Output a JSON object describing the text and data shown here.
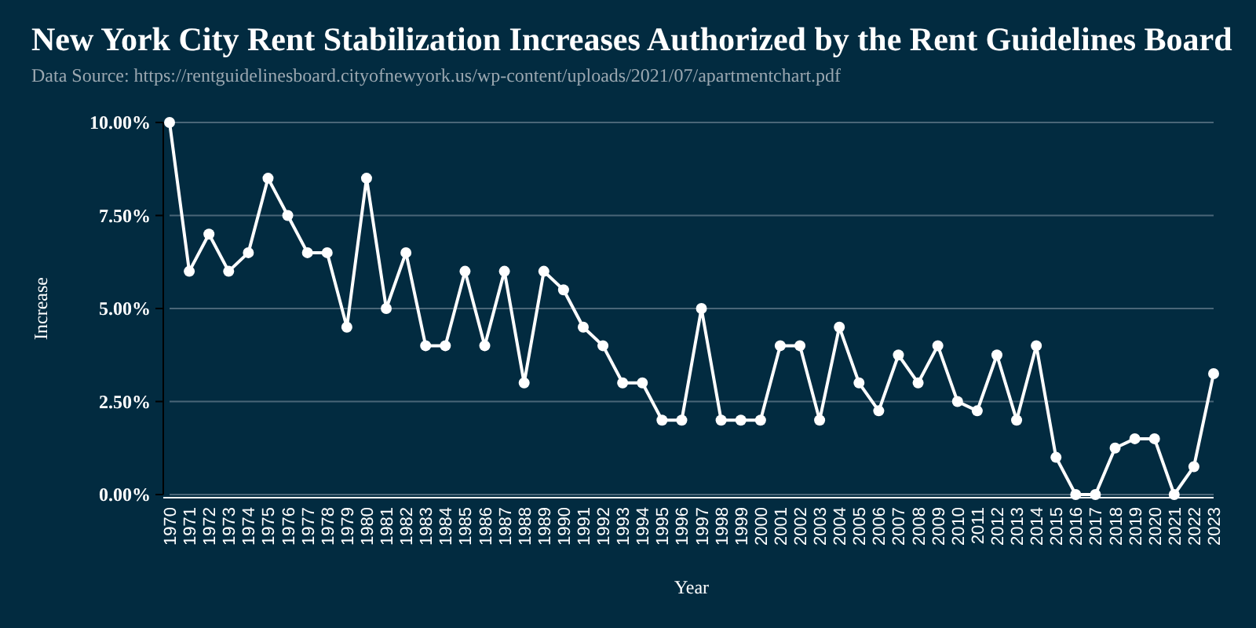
{
  "chart_data": {
    "type": "line",
    "title": "New York City Rent Stabilization Increases Authorized by the Rent Guidelines Board",
    "subtitle": "Data Source: https://rentguidelinesboard.cityofnewyork.us/wp-content/uploads/2021/07/apartmentchart.pdf",
    "xlabel": "Year",
    "ylabel": "Increase",
    "categories": [
      "1970",
      "1971",
      "1972",
      "1973",
      "1974",
      "1975",
      "1976",
      "1977",
      "1978",
      "1979",
      "1980",
      "1981",
      "1982",
      "1983",
      "1984",
      "1985",
      "1986",
      "1987",
      "1988",
      "1989",
      "1990",
      "1991",
      "1992",
      "1993",
      "1994",
      "1995",
      "1996",
      "1997",
      "1998",
      "1999",
      "2000",
      "2001",
      "2002",
      "2003",
      "2004",
      "2005",
      "2006",
      "2007",
      "2008",
      "2009",
      "2010",
      "2011",
      "2012",
      "2013",
      "2014",
      "2015",
      "2016",
      "2017",
      "2018",
      "2019",
      "2020",
      "2021",
      "2022",
      "2023"
    ],
    "series": [
      {
        "color": "#ffffff",
        "values": [
          10,
          6,
          7,
          6,
          6.5,
          8.5,
          7.5,
          6.5,
          6.5,
          4.5,
          8.5,
          5,
          6.5,
          4,
          4,
          6,
          4,
          6,
          3,
          6,
          5.5,
          4.5,
          4,
          3,
          3,
          2,
          2,
          5,
          2,
          2,
          2,
          4,
          4,
          2,
          4.5,
          3,
          2.25,
          3.75,
          3,
          4,
          2.5,
          2.25,
          3.75,
          2,
          4,
          1,
          0,
          0,
          1.25,
          1.5,
          1.5,
          0,
          0.75,
          3.25
        ]
      }
    ],
    "ylim": [
      0,
      10
    ],
    "yticks": [
      {
        "value": 0,
        "label": "0.00%"
      },
      {
        "value": 2.5,
        "label": "2.50%"
      },
      {
        "value": 5,
        "label": "5.00%"
      },
      {
        "value": 7.5,
        "label": "7.50%"
      },
      {
        "value": 10,
        "label": "10.00%"
      }
    ],
    "grid": "y",
    "marker": "circle",
    "line_style": "solid"
  }
}
